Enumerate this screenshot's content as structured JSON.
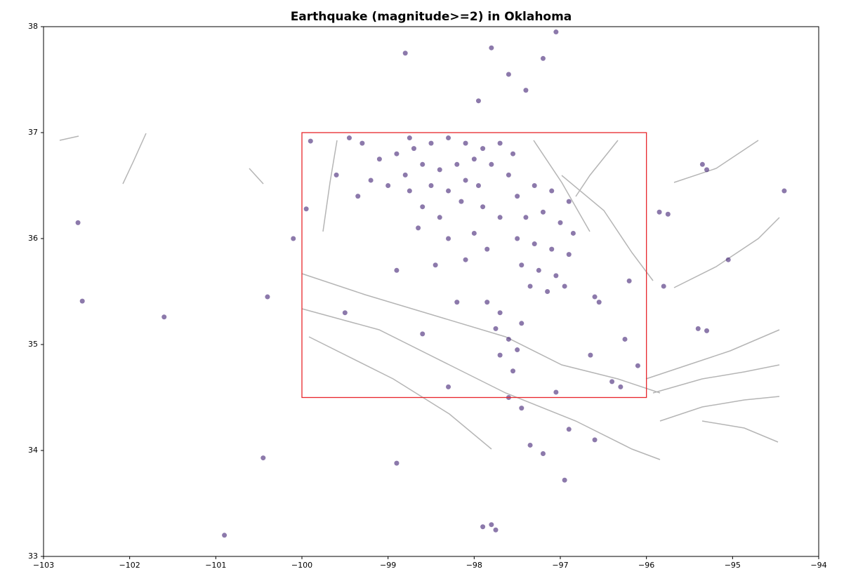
{
  "chart_data": {
    "type": "scatter",
    "title": "Earthquake (magnitude>=2) in Oklahoma",
    "x": [
      -99.3,
      -99.1,
      -98.9,
      -98.7,
      -98.5,
      -98.3,
      -98.1,
      -97.9,
      -97.7,
      -97.55,
      -98.8,
      -98.6,
      -98.4,
      -98.2,
      -98.0,
      -97.8,
      -99.0,
      -98.75,
      -98.5,
      -98.3,
      -98.1,
      -97.95,
      -99.2,
      -98.6,
      -98.4,
      -98.15,
      -97.9,
      -97.7,
      -97.5,
      -97.3,
      -97.1,
      -96.9,
      -97.4,
      -97.2,
      -97.0,
      -96.85,
      -97.5,
      -97.3,
      -97.1,
      -96.9,
      -97.45,
      -97.25,
      -97.05,
      -96.95,
      -97.35,
      -97.15,
      -96.55,
      -96.6,
      -97.85,
      -97.7,
      -97.75,
      -97.6,
      -97.5,
      -97.7,
      -97.55,
      -97.6,
      -97.45,
      -97.35,
      -97.2,
      -98.2,
      -98.45,
      -98.9,
      -98.1,
      -97.85,
      -98.3,
      -98.65,
      -98.0,
      -97.95,
      -97.6,
      -97.4,
      -97.2,
      -97.05,
      -98.8,
      -97.8,
      -99.45,
      -99.9,
      -99.95,
      -100.1,
      -100.4,
      -102.6,
      -102.55,
      -101.6,
      -100.9,
      -100.45,
      -98.9,
      -97.8,
      -97.9,
      -97.75,
      -96.95,
      -96.4,
      -96.3,
      -96.1,
      -96.25,
      -95.85,
      -95.75,
      -95.35,
      -95.3,
      -94.4,
      -95.4,
      -95.3,
      -95.8,
      -95.05,
      -96.9,
      -96.6,
      -97.05,
      -98.6,
      -98.3,
      -99.5,
      -96.65,
      -96.2,
      -99.6,
      -99.35,
      -98.75,
      -97.6,
      -97.45
    ],
    "values": [
      36.9,
      36.75,
      36.8,
      36.85,
      36.9,
      36.95,
      36.9,
      36.85,
      36.9,
      36.8,
      36.6,
      36.7,
      36.65,
      36.7,
      36.75,
      36.7,
      36.5,
      36.45,
      36.5,
      36.45,
      36.55,
      36.5,
      36.55,
      36.3,
      36.2,
      36.35,
      36.3,
      36.2,
      36.4,
      36.5,
      36.45,
      36.35,
      36.2,
      36.25,
      36.15,
      36.05,
      36.0,
      35.95,
      35.9,
      35.85,
      35.75,
      35.7,
      35.65,
      35.55,
      35.55,
      35.5,
      35.4,
      35.45,
      35.4,
      35.3,
      35.15,
      35.05,
      34.95,
      34.9,
      34.75,
      34.5,
      34.4,
      34.05,
      33.97,
      35.4,
      35.75,
      35.7,
      35.8,
      35.9,
      36.0,
      36.1,
      36.05,
      37.3,
      37.55,
      37.4,
      37.7,
      37.95,
      37.75,
      37.8,
      36.95,
      36.92,
      36.28,
      36.0,
      35.45,
      36.15,
      35.41,
      35.26,
      33.2,
      33.93,
      33.88,
      33.3,
      33.28,
      33.25,
      33.72,
      34.65,
      34.6,
      34.8,
      35.05,
      36.25,
      36.23,
      36.7,
      36.65,
      36.45,
      35.15,
      35.13,
      35.55,
      35.8,
      34.2,
      34.1,
      34.55,
      35.1,
      34.6,
      35.3,
      34.9,
      35.6,
      36.6,
      36.4,
      36.95,
      36.6,
      35.2
    ],
    "color": "#3f1f73",
    "region": {
      "xlim": [
        -100,
        -96
      ],
      "ylim": [
        34.5,
        37
      ],
      "color": "#e8262b"
    },
    "xlim": [
      -103,
      -94
    ],
    "ylim": [
      33,
      38
    ],
    "xticks": [
      {
        "value": -103,
        "label": "−103"
      },
      {
        "value": -102,
        "label": "−102"
      },
      {
        "value": -101,
        "label": "−101"
      },
      {
        "value": -100,
        "label": "−100"
      },
      {
        "value": -99,
        "label": "−99"
      },
      {
        "value": -98,
        "label": "−98"
      },
      {
        "value": -97,
        "label": "−97"
      },
      {
        "value": -96,
        "label": "−96"
      },
      {
        "value": -95,
        "label": "−95"
      },
      {
        "value": -94,
        "label": "−94"
      }
    ],
    "yticks": [
      33,
      34,
      35,
      36,
      37,
      38
    ]
  }
}
